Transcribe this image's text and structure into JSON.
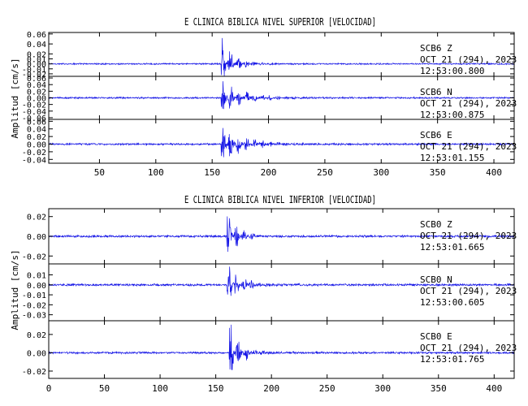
{
  "chart_data": [
    {
      "type": "line",
      "title": "E CLINICA BIBLICA NIVEL SUPERIOR [VELOCIDAD]",
      "ylabel": "Amplitud [cm/s]",
      "xlabel": "",
      "xlim": [
        5,
        418
      ],
      "x_ticks": [
        50,
        100,
        150,
        200,
        250,
        300,
        350,
        400
      ],
      "grid": false,
      "channels": [
        {
          "station": "SCB6",
          "component": "Z",
          "date": "OCT 21 (294), 2023",
          "time": "12:53:00.800",
          "ylim": [
            -0.025,
            0.063
          ],
          "y_ticks": [
            -0.02,
            -0.01,
            0.0,
            0.01,
            0.02,
            0.04,
            0.06
          ],
          "y_tick_labels": [
            "-0.02",
            "-0.01",
            "0.00",
            "0.01",
            "0.02",
            "0.04",
            "0.06"
          ],
          "onset": 158,
          "noise": 0.0012,
          "peak": 0.055,
          "decay": 10
        },
        {
          "station": "SCB6",
          "component": "N",
          "date": "OCT 21 (294), 2023",
          "time": "12:53:00.875",
          "ylim": [
            -0.065,
            0.065
          ],
          "y_ticks": [
            -0.06,
            -0.04,
            -0.02,
            0.0,
            0.02,
            0.04,
            0.06
          ],
          "y_tick_labels": [
            "-0.06",
            "-0.04",
            "-0.02",
            "0.00",
            "0.02",
            "0.04",
            "0.06"
          ],
          "onset": 158,
          "noise": 0.002,
          "peak": 0.05,
          "decay": 18
        },
        {
          "station": "SCB6",
          "component": "E",
          "date": "OCT 21 (294), 2023",
          "time": "12:53:01.155",
          "ylim": [
            -0.05,
            0.065
          ],
          "y_ticks": [
            -0.04,
            -0.02,
            0.0,
            0.02,
            0.04,
            0.06
          ],
          "y_tick_labels": [
            "-0.04",
            "-0.02",
            "0.00",
            "0.02",
            "0.04",
            "0.06"
          ],
          "onset": 158,
          "noise": 0.002,
          "peak": 0.048,
          "decay": 20
        }
      ]
    },
    {
      "type": "line",
      "title": "E CLINICA BIBLICA NIVEL INFERIOR [VELOCIDAD]",
      "ylabel": "Amplitud [cm/s]",
      "xlabel": "",
      "xlim": [
        0,
        418
      ],
      "x_ticks": [
        0,
        50,
        100,
        150,
        200,
        250,
        300,
        350,
        400
      ],
      "grid": false,
      "channels": [
        {
          "station": "SCB0",
          "component": "Z",
          "date": "OCT 21 (294), 2023",
          "time": "12:53:01.665",
          "ylim": [
            -0.028,
            0.028
          ],
          "y_ticks": [
            -0.02,
            0.0,
            0.02
          ],
          "y_tick_labels": [
            "-0.02",
            "0.00",
            "0.02"
          ],
          "onset": 160,
          "noise": 0.0009,
          "peak": 0.024,
          "decay": 9
        },
        {
          "station": "SCB0",
          "component": "N",
          "date": "OCT 21 (294), 2023",
          "time": "12:53:00.605",
          "ylim": [
            -0.036,
            0.021
          ],
          "y_ticks": [
            -0.03,
            -0.02,
            -0.01,
            0.0,
            0.01
          ],
          "y_tick_labels": [
            "-0.03",
            "-0.02",
            "-0.01",
            "0.00",
            "0.01"
          ],
          "onset": 160,
          "noise": 0.0009,
          "peak": 0.02,
          "decay": 12
        },
        {
          "station": "SCB0",
          "component": "E",
          "date": "OCT 21 (294), 2023",
          "time": "12:53:01.765",
          "ylim": [
            -0.028,
            0.035
          ],
          "y_ticks": [
            -0.02,
            0.0,
            0.02
          ],
          "y_tick_labels": [
            "-0.02",
            "0.00",
            "0.02"
          ],
          "onset": 162,
          "noise": 0.0009,
          "peak": 0.03,
          "decay": 10
        }
      ]
    }
  ]
}
